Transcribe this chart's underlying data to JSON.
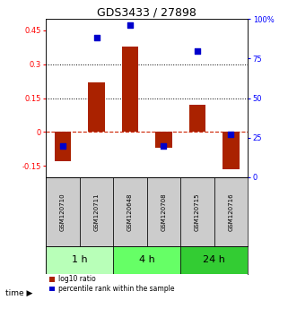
{
  "title": "GDS3433 / 27898",
  "samples": [
    "GSM120710",
    "GSM120711",
    "GSM120648",
    "GSM120708",
    "GSM120715",
    "GSM120716"
  ],
  "log10_ratio": [
    -0.13,
    0.22,
    0.38,
    -0.07,
    0.12,
    -0.165
  ],
  "percentile_rank": [
    20,
    88,
    96,
    20,
    80,
    27
  ],
  "groups": [
    {
      "label": "1 h",
      "samples": [
        0,
        1
      ],
      "color": "#b8ffb8"
    },
    {
      "label": "4 h",
      "samples": [
        2,
        3
      ],
      "color": "#66ff66"
    },
    {
      "label": "24 h",
      "samples": [
        4,
        5
      ],
      "color": "#33cc33"
    }
  ],
  "bar_color": "#aa2200",
  "dot_color": "#0000cc",
  "ylim_left": [
    -0.2,
    0.5
  ],
  "ylim_right": [
    0,
    100
  ],
  "yticks_left": [
    -0.15,
    0.0,
    0.15,
    0.3,
    0.45
  ],
  "yticks_right": [
    0,
    25,
    50,
    75,
    100
  ],
  "hlines": [
    0.15,
    0.3
  ],
  "zero_line_color": "#cc2200",
  "grid_color": "#000000",
  "background_color": "#ffffff",
  "sample_box_color": "#cccccc",
  "bar_width": 0.5,
  "dot_size": 18,
  "group_label_fontsize": 8,
  "tick_fontsize": 6,
  "title_fontsize": 9,
  "sample_fontsize": 5
}
